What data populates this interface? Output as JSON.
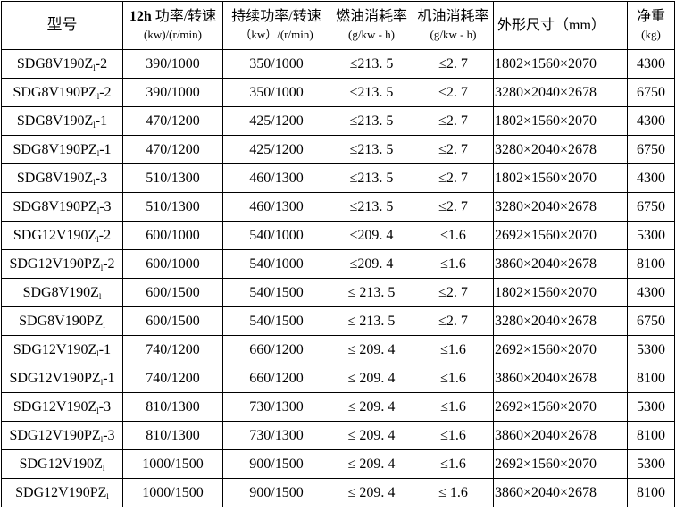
{
  "header": {
    "model": "型号",
    "power12h_prefix": "12h",
    "power12h": "功率/转速",
    "power12h_unit": "(kw)/(r/min)",
    "continuous": "持续功率/转速",
    "continuous_unit": "（kw）/(r/min)",
    "fuel": "燃油消耗率",
    "fuel_unit": "(g/kw - h)",
    "oil": "机油消耗率",
    "oil_unit": "(g/kw - h)",
    "dims": "外形尺寸（mm）",
    "weight": "净重",
    "weight_unit": "(kg)"
  },
  "rows": [
    {
      "model": "SDG8V190Z",
      "sub": "l",
      "suffix": "-2",
      "p12": "390/1000",
      "pc": "350/1000",
      "fuel": "≤213. 5",
      "oil": "≤2. 7",
      "dims": "1802×1560×2070",
      "weight": "4300"
    },
    {
      "model": "SDG8V190PZ",
      "sub": "l",
      "suffix": "-2",
      "p12": "390/1000",
      "pc": "350/1000",
      "fuel": "≤213. 5",
      "oil": "≤2. 7",
      "dims": "3280×2040×2678",
      "weight": "6750"
    },
    {
      "model": "SDG8V190Z",
      "sub": "l",
      "suffix": "-1",
      "p12": "470/1200",
      "pc": "425/1200",
      "fuel": "≤213. 5",
      "oil": "≤2. 7",
      "dims": "1802×1560×2070",
      "weight": "4300"
    },
    {
      "model": "SDG8V190PZ",
      "sub": "l",
      "suffix": "-1",
      "p12": "470/1200",
      "pc": "425/1200",
      "fuel": "≤213. 5",
      "oil": "≤2. 7",
      "dims": "3280×2040×2678",
      "weight": "6750"
    },
    {
      "model": "SDG8V190Z",
      "sub": "l",
      "suffix": "-3",
      "p12": "510/1300",
      "pc": "460/1300",
      "fuel": "≤213. 5",
      "oil": "≤2. 7",
      "dims": "1802×1560×2070",
      "weight": "4300"
    },
    {
      "model": "SDG8V190PZ",
      "sub": "l",
      "suffix": "-3",
      "p12": "510/1300",
      "pc": "460/1300",
      "fuel": "≤213. 5",
      "oil": "≤2. 7",
      "dims": "3280×2040×2678",
      "weight": "6750"
    },
    {
      "model": "SDG12V190Z",
      "sub": "l",
      "suffix": "-2",
      "p12": "600/1000",
      "pc": "540/1000",
      "fuel": "≤209. 4",
      "oil": "≤1.6",
      "dims": "2692×1560×2070",
      "weight": "5300"
    },
    {
      "model": "SDG12V190PZ",
      "sub": "l",
      "suffix": "-2",
      "p12": "600/1000",
      "pc": "540/1000",
      "fuel": "≤209. 4",
      "oil": "≤1.6",
      "dims": "3860×2040×2678",
      "weight": "8100"
    },
    {
      "model": "SDG8V190Z",
      "sub": "l",
      "suffix": "",
      "p12": "600/1500",
      "pc": "540/1500",
      "fuel": "≤ 213. 5",
      "oil": "≤2. 7",
      "dims": "1802×1560×2070",
      "weight": "4300"
    },
    {
      "model": "SDG8V190PZ",
      "sub": "l",
      "suffix": "",
      "p12": "600/1500",
      "pc": "540/1500",
      "fuel": "≤ 213. 5",
      "oil": "≤2. 7",
      "dims": "3280×2040×2678",
      "weight": "6750"
    },
    {
      "model": "SDG12V190Z",
      "sub": "l",
      "suffix": "-1",
      "p12": "740/1200",
      "pc": "660/1200",
      "fuel": "≤ 209. 4",
      "oil": "≤1.6",
      "dims": "2692×1560×2070",
      "weight": "5300"
    },
    {
      "model": "SDG12V190PZ",
      "sub": "l",
      "suffix": "-1",
      "p12": "740/1200",
      "pc": "660/1200",
      "fuel": "≤ 209. 4",
      "oil": "≤1.6",
      "dims": "3860×2040×2678",
      "weight": "8100"
    },
    {
      "model": "SDG12V190Z",
      "sub": "l",
      "suffix": "-3",
      "p12": "810/1300",
      "pc": "730/1300",
      "fuel": "≤ 209. 4",
      "oil": "≤1.6",
      "dims": "2692×1560×2070",
      "weight": "5300"
    },
    {
      "model": "SDG12V190PZ",
      "sub": "l",
      "suffix": "-3",
      "p12": "810/1300",
      "pc": "730/1300",
      "fuel": "≤ 209. 4",
      "oil": "≤1.6",
      "dims": "3860×2040×2678",
      "weight": "8100"
    },
    {
      "model": "SDG12V190Z",
      "sub": "l",
      "suffix": "",
      "p12": "1000/1500",
      "pc": "900/1500",
      "fuel": "≤ 209. 4",
      "oil": "≤1.6",
      "dims": "2692×1560×2070",
      "weight": "5300"
    },
    {
      "model": "SDG12V190PZ",
      "sub": "l",
      "suffix": "",
      "p12": "1000/1500",
      "pc": "900/1500",
      "fuel": "≤ 209. 4",
      "oil": "≤ 1.6",
      "dims": "3860×2040×2678",
      "weight": "8100"
    }
  ]
}
